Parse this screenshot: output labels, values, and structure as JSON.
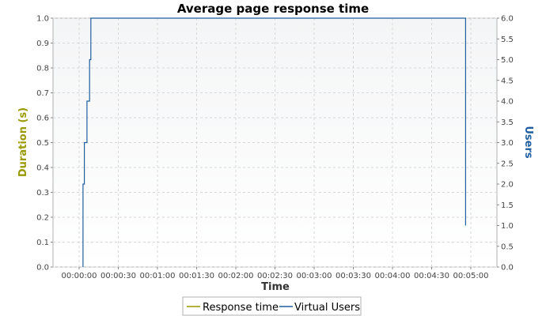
{
  "chart_data": {
    "type": "line",
    "title": "Average page response time",
    "xlabel": "Time",
    "ylabel_left": "Duration (s)",
    "ylabel_right": "Users",
    "x_unit": "seconds",
    "xlim": [
      -20,
      320
    ],
    "x_ticks": [
      0,
      30,
      60,
      90,
      120,
      150,
      180,
      210,
      240,
      270,
      300
    ],
    "x_tick_labels": [
      "00:00:00",
      "00:00:30",
      "00:01:00",
      "00:01:30",
      "00:02:00",
      "00:02:30",
      "00:03:00",
      "00:03:30",
      "00:04:00",
      "00:04:30",
      "00:05:00"
    ],
    "ylim_left": [
      0,
      1.0
    ],
    "y_ticks_left": [
      "0.0",
      "0.1",
      "0.2",
      "0.3",
      "0.4",
      "0.5",
      "0.6",
      "0.7",
      "0.8",
      "0.9",
      "1.0"
    ],
    "ylim_right": [
      0,
      6.0
    ],
    "y_ticks_right": [
      "0.0",
      "0.5",
      "1.0",
      "1.5",
      "2.0",
      "2.5",
      "3.0",
      "3.5",
      "4.0",
      "4.5",
      "5.0",
      "5.5",
      "6.0"
    ],
    "grid": true,
    "legend_position": "bottom",
    "series": [
      {
        "name": "Response time",
        "axis": "left",
        "color": "#999900",
        "x": [],
        "y": []
      },
      {
        "name": "Virtual Users",
        "axis": "right",
        "color": "#1f5f9f",
        "step": true,
        "x": [
          3,
          3,
          4,
          4,
          6,
          6,
          8,
          8,
          9,
          9,
          10,
          10,
          296,
          296
        ],
        "y": [
          0,
          2,
          2,
          3,
          3,
          4,
          4,
          5,
          5,
          6,
          6,
          6,
          6,
          1
        ]
      }
    ],
    "colors": {
      "left_axis_label": "#999900",
      "right_axis_label": "#1f5f9f",
      "plot_background_top": "#f5f6f7",
      "plot_background_bottom": "#ffffff",
      "grid": "#d8d8d8"
    }
  }
}
